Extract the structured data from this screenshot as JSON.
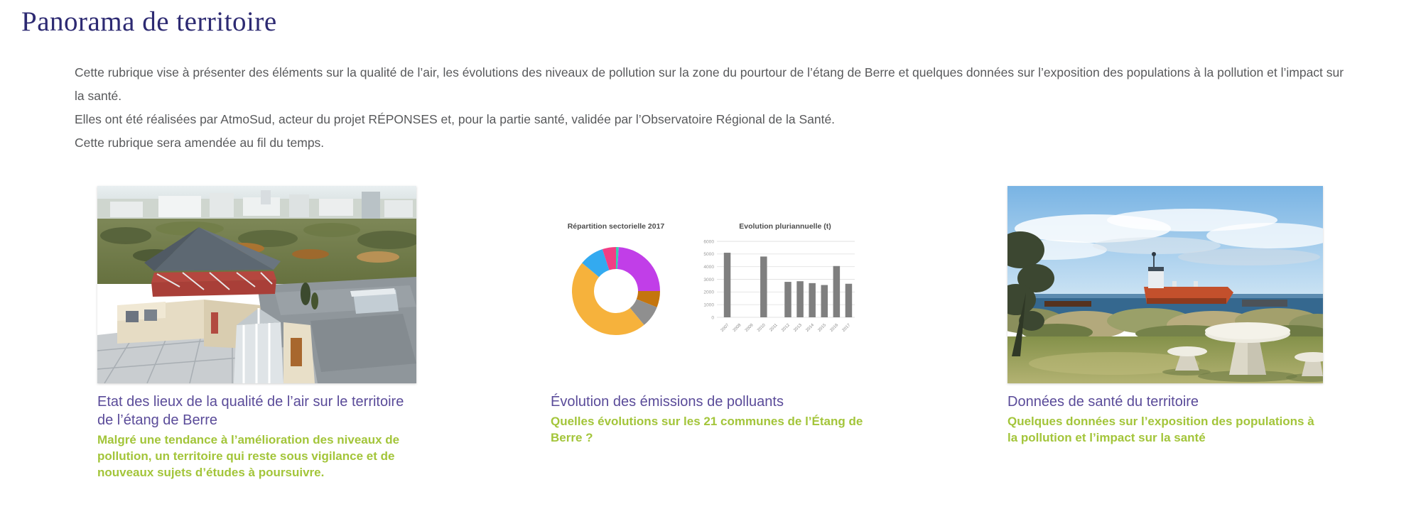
{
  "page": {
    "title": "Panorama de territoire",
    "intro": [
      "Cette rubrique vise à présenter des éléments sur la qualité de l’air, les évolutions des niveaux de pollution sur la zone du pourtour de l’étang de Berre et quelques données sur l’exposition des populations à la pollution et l’impact sur la santé.",
      "Elles ont été réalisées par AtmoSud, acteur du projet RÉPONSES et, pour la partie santé, validée par l’Observatoire Régional de la Santé.",
      "Cette rubrique sera amendée au fil du temps."
    ]
  },
  "colors": {
    "page_title": "#2d2a72",
    "body_text": "#58595b",
    "card_title": "#5a4b99",
    "card_subtitle": "#a3c53a"
  },
  "cards": [
    {
      "title": "Etat des lieux de la qualité de l’air sur le territoire de l’étang de Berre",
      "subtitle": "Malgré une tendance à l’amélioration des niveaux de pollution, un territoire qui reste sous vigilance et de nouveaux sujets d’études à poursuivre.",
      "image": "aerial-view-buildings-etang-de-berre"
    },
    {
      "title": "Évolution des émissions de polluants",
      "subtitle": "Quelles évolutions sur les 21 communes de l’Étang de Berre ?",
      "image": "emissions-charts"
    },
    {
      "title": "Données de santé du territoire",
      "subtitle": "Quelques données sur l’exposition des populations à la pollution et l’impact sur la santé",
      "image": "coastal-view-tanker-picnic-table"
    }
  ],
  "chart_data": [
    {
      "type": "pie",
      "donut": true,
      "title": "Répartition sectorielle 2017",
      "legend_position": "none",
      "slices": [
        {
          "label": "secteur-teal",
          "value": 1,
          "color": "#35d3b0"
        },
        {
          "label": "secteur-violet",
          "value": 24,
          "color": "#c13ee8"
        },
        {
          "label": "secteur-brun",
          "value": 6,
          "color": "#c4750e"
        },
        {
          "label": "secteur-gris",
          "value": 8,
          "color": "#8f8f8f"
        },
        {
          "label": "secteur-orange",
          "value": 47,
          "color": "#f6b23c"
        },
        {
          "label": "secteur-bleu",
          "value": 9,
          "color": "#33aaf0"
        },
        {
          "label": "secteur-rose",
          "value": 5,
          "color": "#f23e84"
        }
      ]
    },
    {
      "type": "bar",
      "title": "Evolution pluriannuelle (t)",
      "categories": [
        "2007",
        "2008",
        "2009",
        "2010",
        "2011",
        "2012",
        "2013",
        "2014",
        "2015",
        "2016",
        "2017"
      ],
      "values": [
        5100,
        0,
        0,
        4800,
        0,
        2800,
        2850,
        2700,
        2550,
        4050,
        2650
      ],
      "xlabel": "",
      "ylabel": "",
      "ylim": [
        0,
        6000
      ],
      "yticks": [
        0,
        1000,
        2000,
        3000,
        4000,
        5000,
        6000
      ],
      "grid": true,
      "bar_color": "#7f7f7f"
    }
  ]
}
